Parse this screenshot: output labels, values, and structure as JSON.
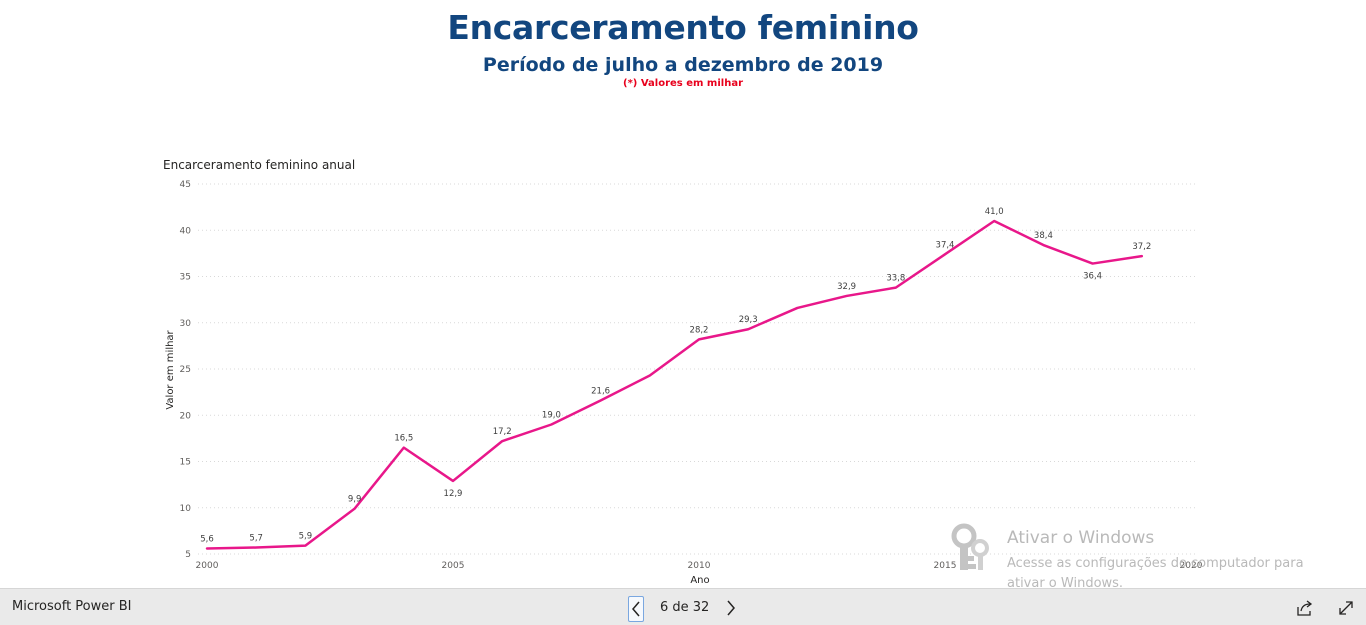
{
  "report": {
    "title": "Encarceramento feminino",
    "subtitle": "Período de julho a dezembro de 2019",
    "note": "(*) Valores em milhar"
  },
  "chart_data": {
    "type": "line",
    "title": "Encarceramento feminino anual",
    "xlabel": "Ano",
    "ylabel": "Valor em milhar",
    "x": [
      2000,
      2001,
      2002,
      2003,
      2004,
      2005,
      2006,
      2007,
      2008,
      2009,
      2010,
      2011,
      2012,
      2013,
      2014,
      2015,
      2016,
      2017,
      2018,
      2019
    ],
    "values": [
      5.6,
      5.7,
      5.9,
      9.9,
      16.5,
      12.9,
      17.2,
      19.0,
      21.6,
      24.3,
      28.2,
      29.3,
      31.6,
      32.9,
      33.8,
      37.4,
      41.0,
      38.4,
      36.4,
      37.2
    ],
    "data_labels": [
      "5,6",
      "5,7",
      "5,9",
      "9,9",
      "16,5",
      "12,9",
      "17,2",
      "19,0",
      "21,6",
      "",
      "28,2",
      "29,3",
      "",
      "32,9",
      "33,8",
      "37,4",
      "41,0",
      "38,4",
      "36,4",
      "37,2"
    ],
    "xticks": [
      "2000",
      "2005",
      "2010",
      "2015",
      "2020"
    ],
    "yticks": [
      "5",
      "10",
      "15",
      "20",
      "25",
      "30",
      "35",
      "40",
      "45"
    ],
    "xlim": [
      2000,
      2020
    ],
    "ylim": [
      5,
      45
    ],
    "grid": true,
    "line_color": "#e8178a"
  },
  "watermark": {
    "title": "Ativar o Windows",
    "subtitle": "Acesse as configurações do computador para ativar o Windows."
  },
  "footer": {
    "brand": "Microsoft Power BI",
    "page_label": "6 de 32",
    "prev_icon": "chevron-left-icon",
    "next_icon": "chevron-right-icon",
    "share_icon": "share-icon",
    "fullscreen_icon": "fullscreen-icon"
  }
}
